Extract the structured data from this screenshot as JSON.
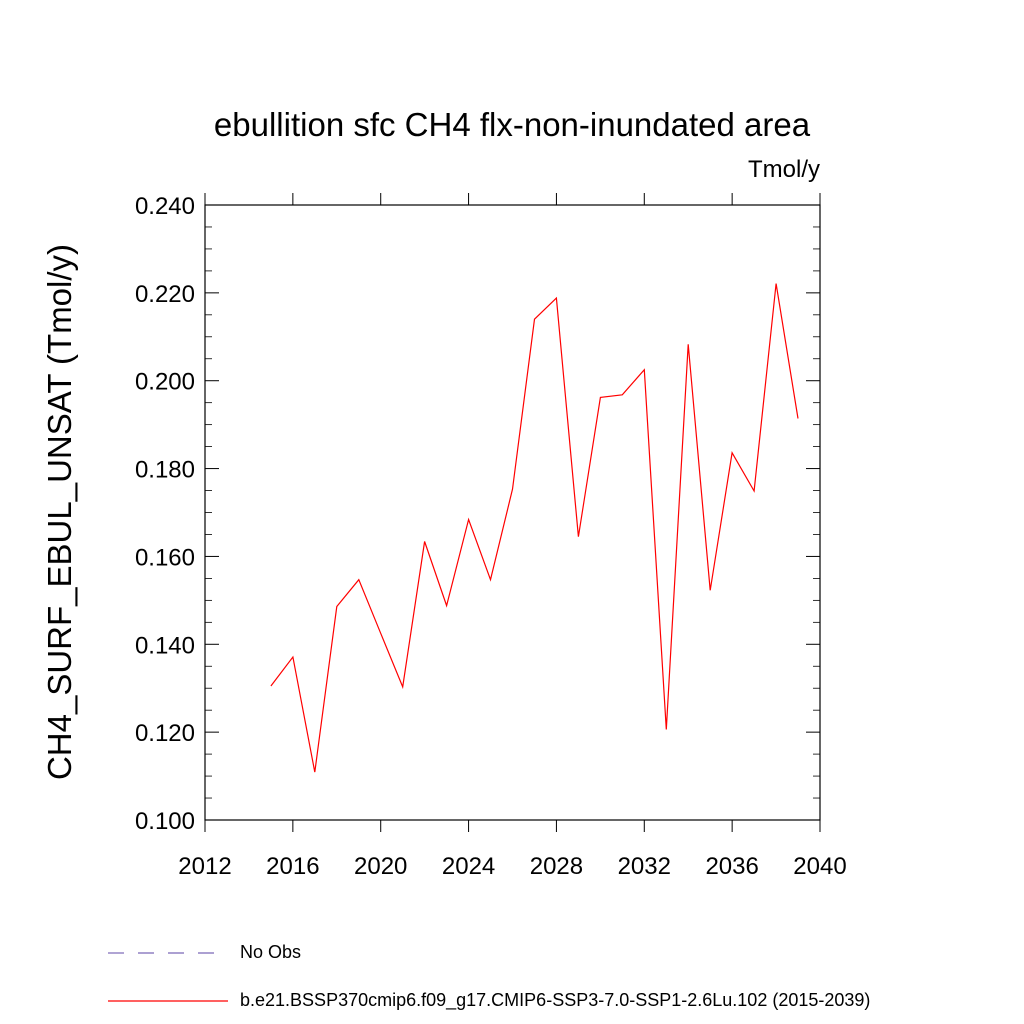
{
  "chart_data": {
    "type": "line",
    "title": "ebullition sfc CH4 flx-non-inundated area",
    "units_label": "Tmol/y",
    "ylabel": "CH4_SURF_EBUL_UNSAT  (Tmol/y)",
    "xlabel": "",
    "xlim": [
      2012,
      2040
    ],
    "ylim": [
      0.1,
      0.24
    ],
    "x_ticks": [
      "2012",
      "2016",
      "2020",
      "2024",
      "2028",
      "2032",
      "2036",
      "2040"
    ],
    "y_ticks": [
      "0.100",
      "0.120",
      "0.140",
      "0.160",
      "0.180",
      "0.200",
      "0.220",
      "0.240"
    ],
    "grid": false,
    "legend_position": "bottom",
    "series": [
      {
        "name": "b.e21.BSSP370cmip6.f09_g17.CMIP6-SSP3-7.0-SSP1-2.6Lu.102 (2015-2039)",
        "color": "#ff0000",
        "style": "solid",
        "x": [
          2015,
          2016,
          2017,
          2018,
          2019,
          2020,
          2021,
          2022,
          2023,
          2024,
          2025,
          2026,
          2027,
          2028,
          2029,
          2030,
          2031,
          2032,
          2033,
          2034,
          2035,
          2036,
          2037,
          2038,
          2039
        ],
        "y": [
          0.1305,
          0.1371,
          0.1109,
          0.1486,
          0.1547,
          0.1425,
          0.1303,
          0.1634,
          0.1488,
          0.1684,
          0.1547,
          0.1753,
          0.214,
          0.2188,
          0.1645,
          0.1962,
          0.1968,
          0.2025,
          0.1206,
          0.2083,
          0.1523,
          0.1836,
          0.1749,
          0.2221,
          0.1914
        ]
      },
      {
        "name": "No Obs",
        "color": "#7b68b8",
        "style": "dashed",
        "x": [],
        "y": []
      }
    ]
  }
}
